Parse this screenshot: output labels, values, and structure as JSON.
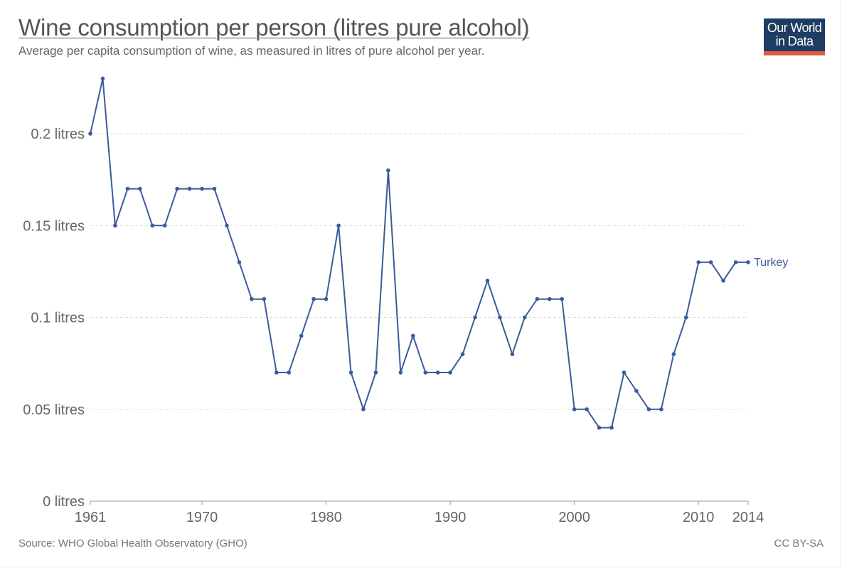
{
  "header": {
    "title": "Wine consumption per person (litres pure alcohol)",
    "subtitle": "Average per capita consumption of wine, as measured in litres of pure alcohol per year."
  },
  "logo": {
    "line1": "Our World",
    "line2": "in Data"
  },
  "footer": {
    "source": "Source: WHO Global Health Observatory (GHO)",
    "license": "CC BY-SA"
  },
  "colors": {
    "series": "#3b5b9a",
    "grid": "#dddddd",
    "logo_bg": "#1d3d63",
    "logo_accent": "#dc5b3b"
  },
  "chart_data": {
    "type": "line",
    "title": "Wine consumption per person (litres pure alcohol)",
    "subtitle": "Average per capita consumption of wine, as measured in litres of pure alcohol per year.",
    "xlabel": "",
    "ylabel": "",
    "xlim": [
      1961,
      2014
    ],
    "ylim": [
      0,
      0.2
    ],
    "y_ticks": [
      0,
      0.05,
      0.1,
      0.15,
      0.2
    ],
    "y_tick_labels": [
      "0 litres",
      "0.05 litres",
      "0.1 litres",
      "0.15 litres",
      "0.2 litres"
    ],
    "x_ticks": [
      1961,
      1970,
      1980,
      1990,
      2000,
      2010,
      2014
    ],
    "x_tick_labels": [
      "1961",
      "1970",
      "1980",
      "1990",
      "2000",
      "2010",
      "2014"
    ],
    "grid": "horizontal dashed",
    "legend": "inline label at line end",
    "series": [
      {
        "name": "Turkey",
        "x": [
          1961,
          1962,
          1963,
          1964,
          1965,
          1966,
          1967,
          1968,
          1969,
          1970,
          1971,
          1972,
          1973,
          1974,
          1975,
          1976,
          1977,
          1978,
          1979,
          1980,
          1981,
          1982,
          1983,
          1984,
          1985,
          1986,
          1987,
          1988,
          1989,
          1990,
          1991,
          1992,
          1993,
          1994,
          1995,
          1996,
          1997,
          1998,
          1999,
          2000,
          2001,
          2002,
          2003,
          2004,
          2005,
          2006,
          2007,
          2008,
          2009,
          2010,
          2011,
          2012,
          2013,
          2014
        ],
        "y": [
          0.2,
          0.23,
          0.15,
          0.17,
          0.17,
          0.15,
          0.15,
          0.17,
          0.17,
          0.17,
          0.17,
          0.15,
          0.13,
          0.11,
          0.11,
          0.07,
          0.07,
          0.09,
          0.11,
          0.11,
          0.15,
          0.07,
          0.05,
          0.07,
          0.18,
          0.07,
          0.09,
          0.07,
          0.07,
          0.07,
          0.08,
          0.1,
          0.12,
          0.1,
          0.08,
          0.1,
          0.11,
          0.11,
          0.11,
          0.05,
          0.05,
          0.04,
          0.04,
          0.07,
          0.06,
          0.05,
          0.05,
          0.08,
          0.1,
          0.13,
          0.13,
          0.12,
          0.13,
          0.13
        ]
      }
    ]
  }
}
